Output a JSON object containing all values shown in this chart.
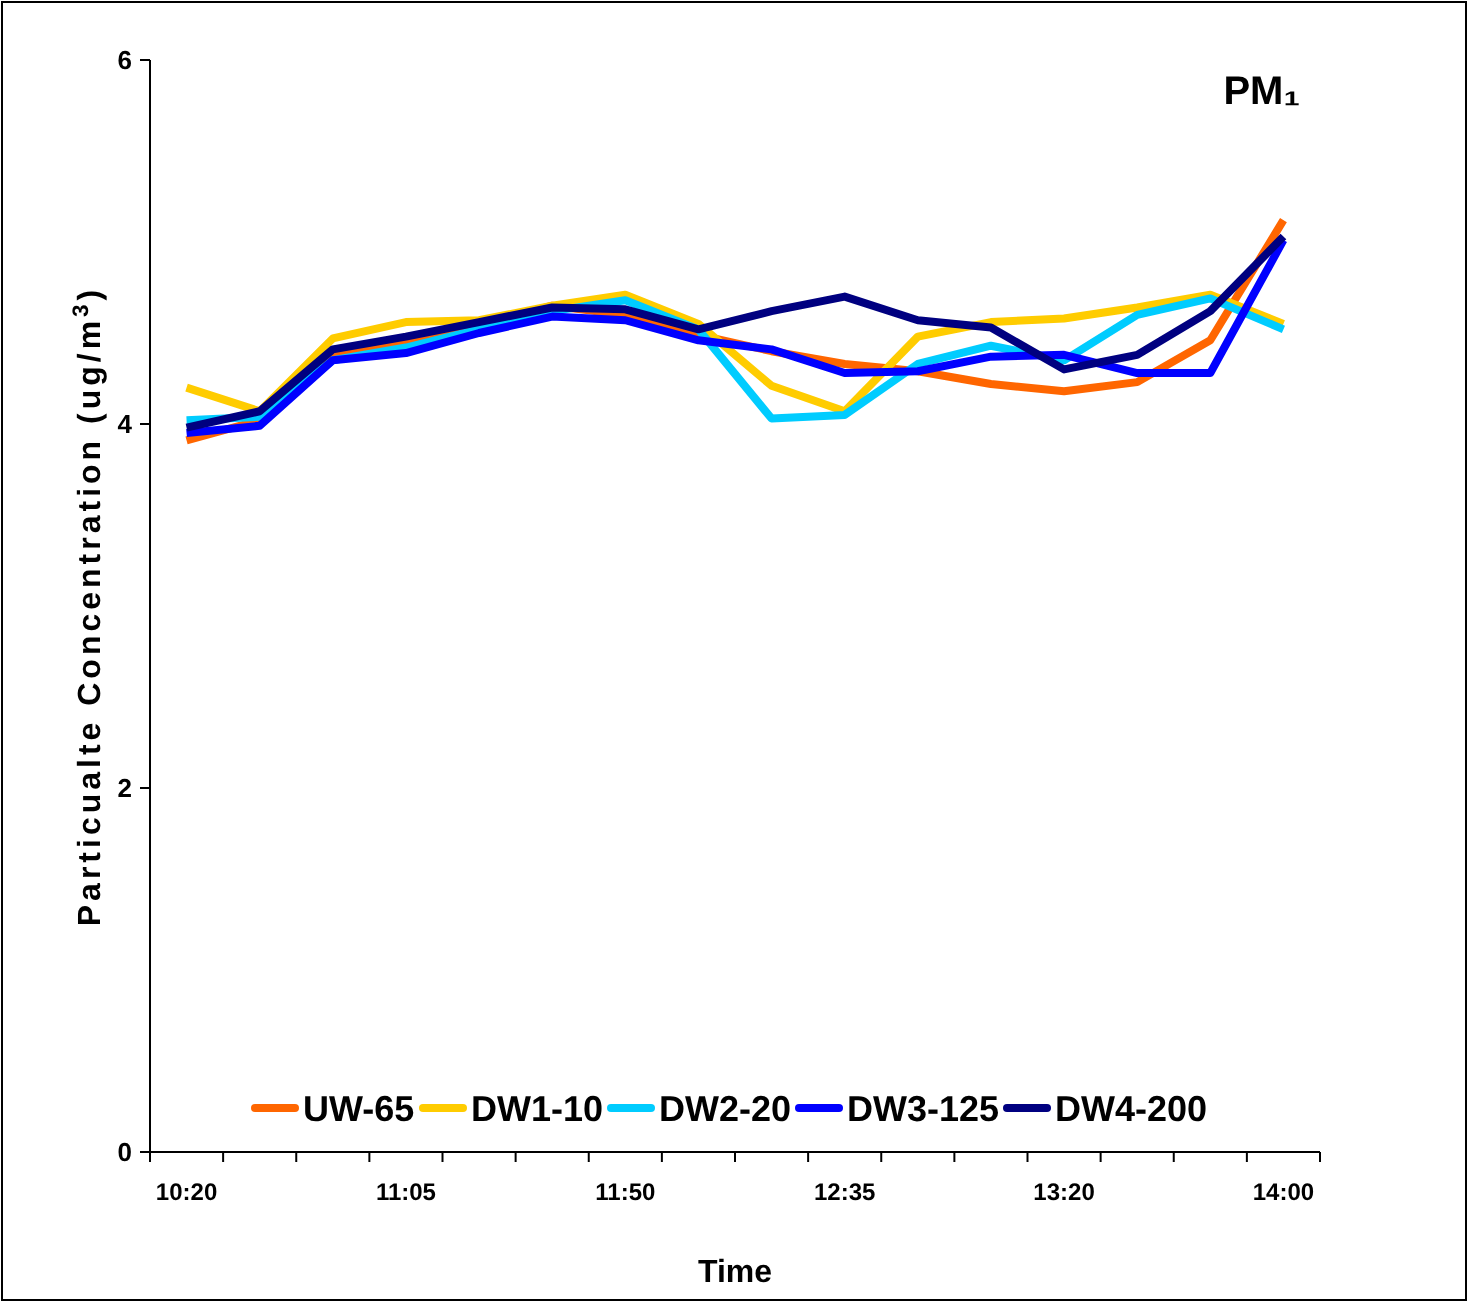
{
  "chart_data": {
    "type": "line",
    "title": "PM₁",
    "xlabel": "Time",
    "ylabel": "Particualte Concentration (ug/m$^{3}$)",
    "categories": [
      "10:20",
      null,
      null,
      "11:05",
      null,
      null,
      "11:50",
      null,
      null,
      "12:35",
      null,
      null,
      "13:20",
      null,
      null,
      "14:00"
    ],
    "series": [
      {
        "name": "UW-65",
        "color": "#ff6600",
        "values": [
          3.91,
          4.02,
          4.39,
          4.46,
          4.54,
          4.65,
          4.6,
          4.49,
          4.4,
          4.33,
          4.29,
          4.22,
          4.18,
          4.23,
          4.46,
          5.12
        ]
      },
      {
        "name": "DW1-10",
        "color": "#ffcc00",
        "values": [
          4.2,
          4.07,
          4.47,
          4.56,
          4.57,
          4.65,
          4.71,
          4.55,
          4.21,
          4.07,
          4.48,
          4.56,
          4.58,
          4.64,
          4.71,
          4.55
        ]
      },
      {
        "name": "DW2-20",
        "color": "#00ccff",
        "values": [
          4.02,
          4.04,
          4.35,
          4.42,
          4.52,
          4.62,
          4.68,
          4.52,
          4.03,
          4.05,
          4.33,
          4.43,
          4.35,
          4.6,
          4.69,
          4.52
        ]
      },
      {
        "name": "DW3-125",
        "color": "#0000ff",
        "values": [
          3.95,
          3.99,
          4.35,
          4.39,
          4.5,
          4.59,
          4.57,
          4.46,
          4.41,
          4.28,
          4.29,
          4.37,
          4.38,
          4.28,
          4.28,
          5.01
        ]
      },
      {
        "name": "DW4-200",
        "color": "#000080",
        "values": [
          3.98,
          4.07,
          4.41,
          4.48,
          4.56,
          4.64,
          4.63,
          4.52,
          4.62,
          4.7,
          4.57,
          4.53,
          4.3,
          4.38,
          4.62,
          5.03
        ]
      }
    ],
    "ylim": [
      0,
      6
    ],
    "yticks": [
      0,
      2,
      4,
      6
    ],
    "grid": false,
    "legend": "bottom",
    "marker": "none",
    "line_style": "solid"
  }
}
